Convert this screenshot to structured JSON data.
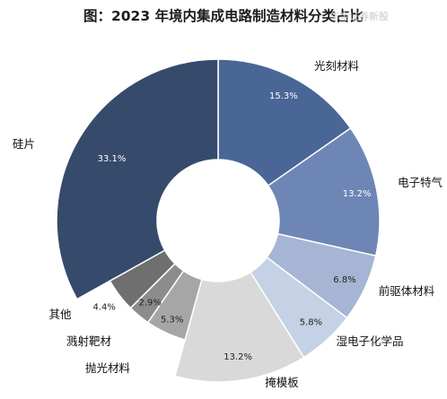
{
  "chart_data": {
    "type": "pie",
    "variant": "donut",
    "title": "图：2023 年境内集成电路制造材料分类占比",
    "unit": "%",
    "legend": "none",
    "slices": [
      {
        "label": "光刻材料",
        "value": 15.3,
        "value_label": "15.3%",
        "color": "#4a6696"
      },
      {
        "label": "电子特气",
        "value": 13.2,
        "value_label": "13.2%",
        "color": "#6e86b5"
      },
      {
        "label": "前驱体材料",
        "value": 6.8,
        "value_label": "6.8%",
        "color": "#a6b5d3"
      },
      {
        "label": "湿电子化学品",
        "value": 5.8,
        "value_label": "5.8%",
        "color": "#c5d1e4"
      },
      {
        "label": "掩模板",
        "value": 13.2,
        "value_label": "13.2%",
        "color": "#d9d9d9"
      },
      {
        "label": "抛光材料",
        "value": 5.3,
        "value_label": "5.3%",
        "color": "#a6a6a6"
      },
      {
        "label": "溅射靶材",
        "value": 2.9,
        "value_label": "2.9%",
        "color": "#8c8c8c"
      },
      {
        "label": "其他",
        "value": 4.4,
        "value_label": "4.4%",
        "color": "#6f6f6f"
      },
      {
        "label": "硅片",
        "value": 33.1,
        "value_label": "33.1%",
        "color": "#364a6b"
      }
    ]
  },
  "watermark": "华金证券新股"
}
